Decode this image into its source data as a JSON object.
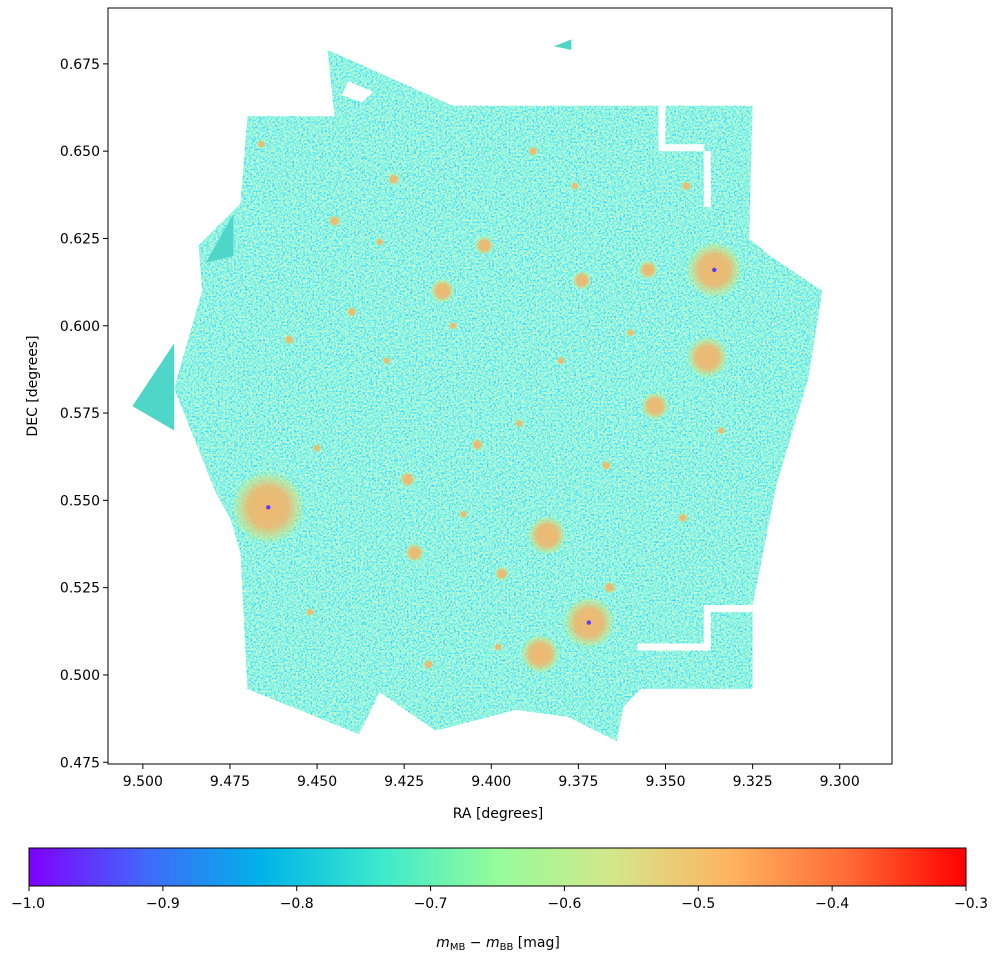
{
  "chart_data": {
    "type": "heatmap",
    "xlabel": "RA [degrees]",
    "ylabel": "DEC [degrees]",
    "xlim": [
      9.51,
      9.285
    ],
    "ylim": [
      0.4745,
      0.691
    ],
    "x_inverted": true,
    "x_ticks": [
      9.5,
      9.475,
      9.45,
      9.425,
      9.4,
      9.375,
      9.35,
      9.325,
      9.3
    ],
    "x_tick_labels": [
      "9.500",
      "9.475",
      "9.450",
      "9.425",
      "9.400",
      "9.375",
      "9.350",
      "9.325",
      "9.300"
    ],
    "y_ticks": [
      0.475,
      0.5,
      0.525,
      0.55,
      0.575,
      0.6,
      0.625,
      0.65,
      0.675
    ],
    "y_tick_labels": [
      "0.475",
      "0.500",
      "0.525",
      "0.550",
      "0.575",
      "0.600",
      "0.625",
      "0.650",
      "0.675"
    ],
    "grid": false,
    "colormap": "rainbow",
    "colormap_stops": [
      "#7f00ff",
      "#4169fa",
      "#00b4e8",
      "#3ce9cd",
      "#96fc9b",
      "#d4e68a",
      "#ffb360",
      "#ff6a34",
      "#ff0000"
    ],
    "background_color": "#4fd6c8",
    "colorbar": {
      "orientation": "horizontal",
      "placement": "bottom",
      "range": [
        -1.0,
        -0.3
      ],
      "ticks": [
        -1.0,
        -0.9,
        -0.8,
        -0.7,
        -0.6,
        -0.5,
        -0.4,
        -0.3
      ],
      "tick_labels": [
        "−1.0",
        "−0.9",
        "−0.8",
        "−0.7",
        "−0.6",
        "−0.5",
        "−0.4",
        "−0.3"
      ],
      "label_base": "m",
      "label_sub1": "MB",
      "label_sub2": "BB",
      "label_units": " [mag]"
    },
    "footprint": [
      [
        9.47,
        0.66
      ],
      [
        9.445,
        0.66
      ],
      [
        9.447,
        0.679
      ],
      [
        9.411,
        0.663
      ],
      [
        9.325,
        0.663
      ],
      [
        9.326,
        0.625
      ],
      [
        9.32,
        0.62
      ],
      [
        9.305,
        0.61
      ],
      [
        9.309,
        0.585
      ],
      [
        9.318,
        0.555
      ],
      [
        9.325,
        0.52
      ],
      [
        9.325,
        0.496
      ],
      [
        9.357,
        0.496
      ],
      [
        9.362,
        0.491
      ],
      [
        9.364,
        0.481
      ],
      [
        9.378,
        0.488
      ],
      [
        9.393,
        0.49
      ],
      [
        9.416,
        0.484
      ],
      [
        9.432,
        0.495
      ],
      [
        9.438,
        0.483
      ],
      [
        9.47,
        0.496
      ],
      [
        9.472,
        0.535
      ],
      [
        9.475,
        0.545
      ],
      [
        9.479,
        0.552
      ],
      [
        9.487,
        0.572
      ],
      [
        9.491,
        0.582
      ],
      [
        9.483,
        0.61
      ],
      [
        9.484,
        0.623
      ],
      [
        9.472,
        0.635
      ]
    ],
    "footprint_fragments": [
      [
        [
          9.491,
          0.595
        ],
        [
          9.491,
          0.57
        ],
        [
          9.503,
          0.577
        ]
      ],
      [
        [
          9.482,
          0.618
        ],
        [
          9.474,
          0.632
        ],
        [
          9.474,
          0.62
        ]
      ],
      [
        [
          9.382,
          0.68
        ],
        [
          9.377,
          0.682
        ],
        [
          9.377,
          0.679
        ]
      ]
    ],
    "chip_gaps": [
      [
        [
          9.352,
          0.663
        ],
        [
          9.35,
          0.663
        ],
        [
          9.35,
          0.652
        ],
        [
          9.339,
          0.652
        ],
        [
          9.339,
          0.634
        ],
        [
          9.337,
          0.634
        ],
        [
          9.337,
          0.65
        ],
        [
          9.352,
          0.65
        ]
      ],
      [
        [
          9.339,
          0.52
        ],
        [
          9.325,
          0.52
        ],
        [
          9.325,
          0.518
        ],
        [
          9.337,
          0.518
        ],
        [
          9.337,
          0.507
        ],
        [
          9.358,
          0.507
        ],
        [
          9.358,
          0.509
        ],
        [
          9.339,
          0.509
        ]
      ],
      [
        [
          9.441,
          0.67
        ],
        [
          9.434,
          0.667
        ],
        [
          9.437,
          0.664
        ],
        [
          9.443,
          0.666
        ]
      ]
    ],
    "sources": [
      {
        "ra": 9.464,
        "dec": 0.548,
        "size": 0.0085,
        "center_value": -0.95
      },
      {
        "ra": 9.336,
        "dec": 0.616,
        "size": 0.0065,
        "center_value": -0.95
      },
      {
        "ra": 9.338,
        "dec": 0.591,
        "size": 0.0048,
        "center_value": -0.95
      },
      {
        "ra": 9.372,
        "dec": 0.515,
        "size": 0.006,
        "center_value": -0.95
      },
      {
        "ra": 9.384,
        "dec": 0.54,
        "size": 0.0045,
        "center_value": -0.95
      },
      {
        "ra": 9.386,
        "dec": 0.506,
        "size": 0.0045,
        "center_value": -0.95
      },
      {
        "ra": 9.353,
        "dec": 0.577,
        "size": 0.0032,
        "center_value": -0.95
      },
      {
        "ra": 9.414,
        "dec": 0.61,
        "size": 0.0028,
        "center_value": -0.5
      },
      {
        "ra": 9.422,
        "dec": 0.535,
        "size": 0.0022,
        "center_value": -0.5
      },
      {
        "ra": 9.374,
        "dec": 0.613,
        "size": 0.0022,
        "center_value": -0.5
      },
      {
        "ra": 9.402,
        "dec": 0.623,
        "size": 0.0022,
        "center_value": -0.5
      },
      {
        "ra": 9.424,
        "dec": 0.556,
        "size": 0.0018,
        "center_value": -0.5
      },
      {
        "ra": 9.397,
        "dec": 0.529,
        "size": 0.0016,
        "center_value": -0.5
      },
      {
        "ra": 9.445,
        "dec": 0.63,
        "size": 0.0014,
        "center_value": -0.5
      },
      {
        "ra": 9.355,
        "dec": 0.616,
        "size": 0.0022,
        "center_value": -0.5
      },
      {
        "ra": 9.366,
        "dec": 0.525,
        "size": 0.0014,
        "center_value": -0.5
      },
      {
        "ra": 9.428,
        "dec": 0.642,
        "size": 0.0014,
        "center_value": -0.5
      },
      {
        "ra": 9.388,
        "dec": 0.65,
        "size": 0.0012,
        "center_value": -0.5
      },
      {
        "ra": 9.404,
        "dec": 0.566,
        "size": 0.0014,
        "center_value": -0.5
      },
      {
        "ra": 9.38,
        "dec": 0.59,
        "size": 0.001,
        "center_value": -0.5
      },
      {
        "ra": 9.44,
        "dec": 0.604,
        "size": 0.0012,
        "center_value": -0.5
      },
      {
        "ra": 9.458,
        "dec": 0.596,
        "size": 0.0012,
        "center_value": -0.5
      },
      {
        "ra": 9.411,
        "dec": 0.6,
        "size": 0.001,
        "center_value": -0.5
      },
      {
        "ra": 9.367,
        "dec": 0.56,
        "size": 0.0012,
        "center_value": -0.5
      },
      {
        "ra": 9.45,
        "dec": 0.565,
        "size": 0.001,
        "center_value": -0.5
      },
      {
        "ra": 9.392,
        "dec": 0.572,
        "size": 0.001,
        "center_value": -0.5
      },
      {
        "ra": 9.345,
        "dec": 0.545,
        "size": 0.0012,
        "center_value": -0.5
      },
      {
        "ra": 9.43,
        "dec": 0.59,
        "size": 0.001,
        "center_value": -0.5
      },
      {
        "ra": 9.36,
        "dec": 0.598,
        "size": 0.001,
        "center_value": -0.5
      },
      {
        "ra": 9.418,
        "dec": 0.503,
        "size": 0.0012,
        "center_value": -0.5
      },
      {
        "ra": 9.452,
        "dec": 0.518,
        "size": 0.001,
        "center_value": -0.5
      },
      {
        "ra": 9.398,
        "dec": 0.508,
        "size": 0.001,
        "center_value": -0.5
      },
      {
        "ra": 9.344,
        "dec": 0.64,
        "size": 0.0012,
        "center_value": -0.5
      },
      {
        "ra": 9.466,
        "dec": 0.652,
        "size": 0.001,
        "center_value": -0.5
      },
      {
        "ra": 9.432,
        "dec": 0.624,
        "size": 0.001,
        "center_value": -0.5
      },
      {
        "ra": 9.376,
        "dec": 0.64,
        "size": 0.001,
        "center_value": -0.5
      },
      {
        "ra": 9.334,
        "dec": 0.57,
        "size": 0.001,
        "center_value": -0.5
      },
      {
        "ra": 9.408,
        "dec": 0.546,
        "size": 0.001,
        "center_value": -0.5
      }
    ]
  }
}
